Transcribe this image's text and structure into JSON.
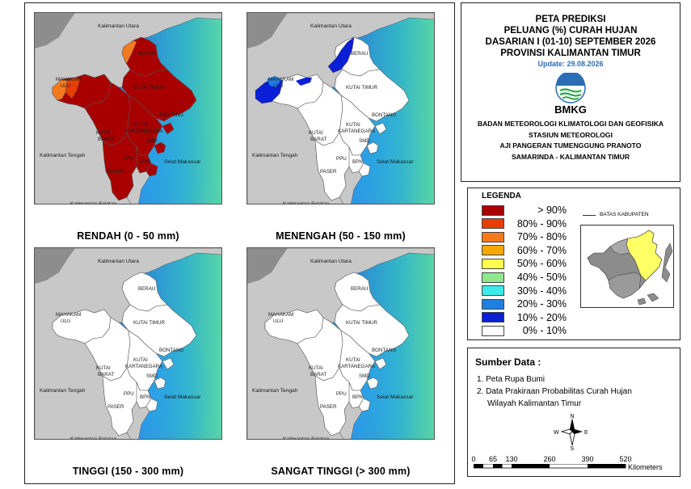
{
  "title": {
    "line1": "PETA PREDIKSI",
    "line2": "PELUANG (%) CURAH HUJAN",
    "line3": "DASARIAN I (01-10) SEPTEMBER 2026",
    "line4": "PROVINSI KALIMANTAN TIMUR",
    "update": "Update: 29.08.2026"
  },
  "logo": {
    "text": "BMKG",
    "icon": "bmkg-logo-icon"
  },
  "institution": {
    "line1": "BADAN METEOROLOGI KLIMATOLOGI DAN GEOFISIKA",
    "line2": "STASIUN METEOROLOGI",
    "line3": "AJI PANGERAN TUMENGGUNG PRANOTO",
    "line4": "SAMARINDA - KALIMANTAN TIMUR"
  },
  "legend": {
    "title": "LEGENDA",
    "boundary_label": "BATAS KABUPATEN",
    "items": [
      {
        "label": "> 90%",
        "color": "#a80000"
      },
      {
        "label": "80% - 90%",
        "color": "#e63d00"
      },
      {
        "label": "70% - 80%",
        "color": "#f47a20"
      },
      {
        "label": "60% - 70%",
        "color": "#f7a800"
      },
      {
        "label": "50% - 60%",
        "color": "#ffff4d"
      },
      {
        "label": "40% - 50%",
        "color": "#8ee88e"
      },
      {
        "label": "30% - 40%",
        "color": "#3de8e8"
      },
      {
        "label": "20% - 30%",
        "color": "#1e7fe0"
      },
      {
        "label": "10% - 20%",
        "color": "#0a1fd6"
      },
      {
        "label": "0% - 10%",
        "color": "#ffffff"
      }
    ]
  },
  "sources": {
    "title": "Sumber Data :",
    "items": [
      "1. Peta Rupa Bumi",
      "2. Data Prakiraan Probabilitas Curah Hujan",
      "Wilayah Kalimantan Timur"
    ]
  },
  "compass": {
    "n": "N",
    "e": "E",
    "s": "S",
    "w": "W"
  },
  "scale": {
    "ticks": [
      "0",
      "65",
      "130",
      "260",
      "390",
      "520"
    ],
    "unit": "Kilometers"
  },
  "map_labels": {
    "kaltara": "Kalimantan Utara",
    "kalteng": "Kalimantan Tengah",
    "kalsel": "Kalimantan Selatan",
    "selat": "Selat Makassar",
    "berau": "BERAU",
    "mahakam1": "MAHAKAM",
    "mahakam2": "ULU",
    "kutai_timur": "KUTAI TIMUR",
    "bontang": "BONTANG",
    "kk1": "KUTAI",
    "kk2": "KARTANEGARA",
    "kb1": "KUTAI",
    "kb2": "BARAT",
    "smd": "SMD",
    "ppu": "PPU",
    "bpn": "BPN",
    "paser": "PASER"
  },
  "panels": [
    {
      "caption": "RENDAH (0 - 50 mm)"
    },
    {
      "caption": "MENENGAH (50 - 150 mm)"
    },
    {
      "caption": "TINGGI (150 - 300 mm)"
    },
    {
      "caption": "SANGAT TINGGI (> 300 mm)"
    }
  ]
}
